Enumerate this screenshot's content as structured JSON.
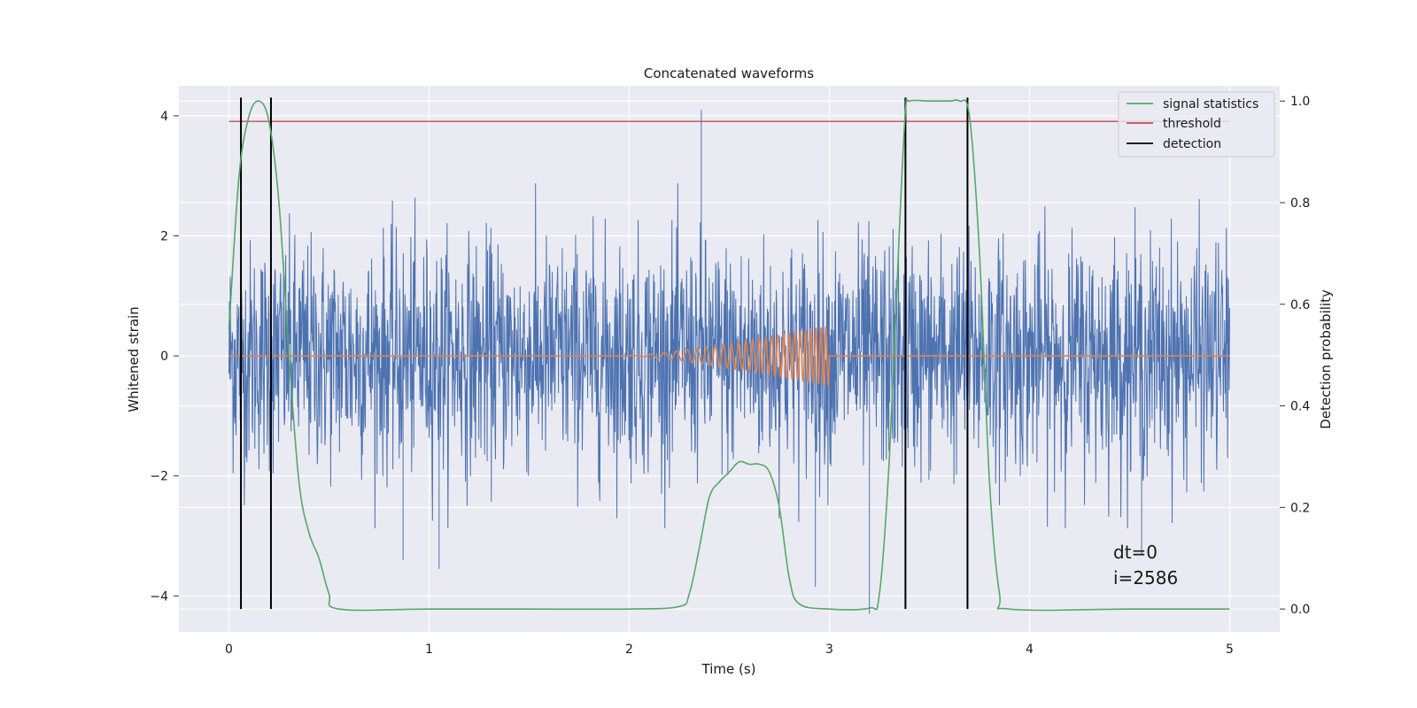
{
  "chart_data": {
    "type": "line",
    "title": "Concatenated waveforms",
    "xlabel": "Time (s)",
    "ylabel": "Whitened strain",
    "ylabel_right": "Detection probability",
    "xlim": [
      -0.25,
      5.25
    ],
    "ylim": [
      -4.6,
      4.5
    ],
    "ylim_right": [
      -0.045,
      1.03
    ],
    "xticks": [
      0,
      1,
      2,
      3,
      4,
      5
    ],
    "xtick_labels": [
      "0",
      "1",
      "2",
      "3",
      "4",
      "5"
    ],
    "yticks": [
      4,
      2,
      0,
      -2,
      -4
    ],
    "ytick_labels": [
      "4",
      "2",
      "0",
      "−2",
      "−4"
    ],
    "yticks_right": [
      1.0,
      0.8,
      0.6,
      0.4,
      0.2,
      0.0
    ],
    "ytick_right_labels": [
      "1.0",
      "0.8",
      "0.6",
      "0.4",
      "0.2",
      "0.0"
    ],
    "grid": true,
    "legend_position": "top-right",
    "legend": [
      {
        "label": "signal statistics",
        "color": "#55a868",
        "key": "stat"
      },
      {
        "label": "threshold",
        "color": "#c44e52",
        "key": "threshold"
      },
      {
        "label": "detection",
        "color": "#000000",
        "key": "detection"
      }
    ],
    "colors": {
      "strain": "#4c72b0",
      "template": "#dd8452",
      "stat": "#55a868",
      "threshold": "#c44e52",
      "detection": "#000000",
      "background": "#eaeaf2"
    },
    "strain": {
      "x_range": [
        0,
        5
      ],
      "typical_peak": 2.5,
      "extreme_points": [
        [
          2.36,
          4.1
        ],
        [
          3.2,
          -4.3
        ],
        [
          4.56,
          -3.3
        ],
        [
          0.87,
          -3.4
        ],
        [
          1.05,
          -3.55
        ],
        [
          2.93,
          -3.85
        ]
      ]
    },
    "template": {
      "x": [
        0,
        5
      ],
      "chirp_start": 2.0,
      "chirp_end": 3.0,
      "max_amplitude": 0.47
    },
    "signal_statistics": {
      "x": [
        0.0,
        0.05,
        0.1,
        0.15,
        0.2,
        0.25,
        0.3,
        0.35,
        0.4,
        0.45,
        0.5,
        0.55,
        1.0,
        1.5,
        2.0,
        2.25,
        2.3,
        2.35,
        2.4,
        2.45,
        2.5,
        2.55,
        2.6,
        2.65,
        2.7,
        2.75,
        2.8,
        2.85,
        3.0,
        3.2,
        3.25,
        3.3,
        3.35,
        3.38,
        3.4,
        3.5,
        3.6,
        3.65,
        3.7,
        3.75,
        3.8,
        3.85,
        3.9,
        4.5,
        5.0
      ],
      "y": [
        0.55,
        0.85,
        0.97,
        1.0,
        0.96,
        0.8,
        0.5,
        0.25,
        0.15,
        0.1,
        0.03,
        0.0,
        0.0,
        0.0,
        0.0,
        0.005,
        0.03,
        0.12,
        0.22,
        0.25,
        0.27,
        0.29,
        0.285,
        0.285,
        0.27,
        0.2,
        0.06,
        0.01,
        0.0,
        0.002,
        0.03,
        0.3,
        0.75,
        0.98,
        1.0,
        1.0,
        1.0,
        1.0,
        0.97,
        0.7,
        0.25,
        0.03,
        0.0,
        0.0,
        0.0
      ]
    },
    "threshold": 0.96,
    "detections": [
      0.06,
      0.21,
      3.38,
      3.69
    ],
    "annotations": [
      "dt=0",
      "i=2586"
    ]
  }
}
